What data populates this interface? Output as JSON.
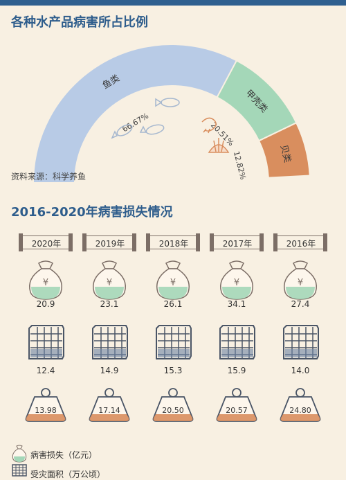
{
  "section1": {
    "title": "各种水产品病害所占比例",
    "source": "资料来源：科学养鱼"
  },
  "section2": {
    "title": "2016-2020年病害损失情况"
  },
  "chart_data": [
    {
      "type": "pie",
      "title": "各种水产品病害所占比例",
      "categories": [
        "鱼类",
        "甲壳类",
        "贝类"
      ],
      "values": [
        66.67,
        20.51,
        12.82
      ],
      "value_labels": [
        "66.67%",
        "20.51%",
        "12.82%"
      ],
      "colors": [
        "#b8cbe6",
        "#a4d7b8",
        "#d98e5e"
      ],
      "shape": "half-donut"
    },
    {
      "type": "table",
      "title": "2016-2020年病害损失情况",
      "years": [
        "2020年",
        "2019年",
        "2018年",
        "2017年",
        "2016年"
      ],
      "series": [
        {
          "name": "病害损失（亿元）",
          "values": [
            "20.9",
            "23.1",
            "26.1",
            "34.1",
            "27.4"
          ]
        },
        {
          "name": "受灾面积（万公顷）",
          "values": [
            "12.4",
            "14.9",
            "15.3",
            "15.9",
            "14.0"
          ]
        },
        {
          "name": "",
          "values": [
            "13.98",
            "17.14",
            "20.50",
            "20.57",
            "24.80"
          ]
        }
      ]
    }
  ],
  "legend": [
    {
      "label": "病害损失（亿元）",
      "icon": "money-bag-icon"
    },
    {
      "label": "受灾面积（万公顷）",
      "icon": "grid-panel-icon"
    }
  ],
  "colors": {
    "title": "#2e5d8c",
    "background": "#f8f0e2",
    "fish": "#b8cbe6",
    "crustacean": "#a4d7b8",
    "shellfish": "#d98e5e",
    "bag_fill": "#a4d7b8",
    "panel_fill": "#6e84a3",
    "weight_fill": "#d98e5e",
    "outline": "#7c6e66"
  }
}
